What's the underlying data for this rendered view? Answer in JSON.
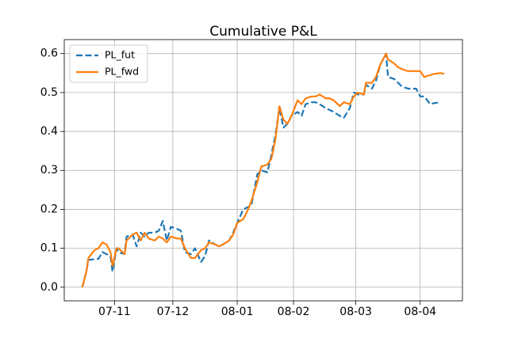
{
  "chart_data": {
    "type": "line",
    "title": "Cumulative P&L",
    "x": [
      14,
      16,
      17,
      20,
      22,
      24,
      26,
      28,
      29,
      31,
      32,
      35,
      36,
      39,
      41,
      43,
      45,
      47,
      50,
      52,
      54,
      56,
      58,
      61,
      63,
      65,
      68,
      70,
      73,
      75,
      77,
      80,
      82,
      84,
      87,
      89,
      91,
      94,
      96,
      98,
      101,
      103,
      106,
      108,
      110,
      112,
      114,
      116,
      118,
      121,
      123,
      125,
      128,
      130,
      132,
      135,
      137,
      139,
      142,
      144,
      147,
      149,
      151,
      154,
      155,
      158,
      160,
      162,
      165,
      166,
      169,
      171,
      173,
      176,
      178,
      180,
      182,
      184,
      187,
      189,
      192,
      194
    ],
    "series": [
      {
        "name": "PL_fut",
        "color": "#1f77b4",
        "dash": true,
        "values": [
          0,
          0.04,
          0.07,
          0.072,
          0.073,
          0.09,
          0.085,
          0.08,
          0.04,
          0.1,
          0.09,
          0.085,
          0.13,
          0.135,
          0.105,
          0.14,
          0.13,
          0.14,
          0.14,
          0.145,
          0.17,
          0.12,
          0.155,
          0.15,
          0.145,
          0.09,
          0.085,
          0.1,
          0.065,
          0.08,
          0.12,
          0.11,
          0.105,
          0.11,
          0.12,
          0.14,
          0.165,
          0.2,
          0.205,
          0.21,
          0.29,
          0.3,
          0.295,
          0.34,
          0.39,
          0.46,
          0.41,
          0.42,
          0.44,
          0.45,
          0.44,
          0.47,
          0.475,
          0.475,
          0.47,
          0.46,
          0.455,
          0.45,
          0.44,
          0.435,
          0.46,
          0.5,
          0.495,
          0.495,
          0.52,
          0.51,
          0.53,
          0.57,
          0.6,
          0.54,
          0.535,
          0.525,
          0.515,
          0.51,
          0.51,
          0.51,
          0.49,
          0.49,
          0.47,
          0.473,
          0.475,
          null
        ]
      },
      {
        "name": "PL_fwd",
        "color": "#ff7f0e",
        "dash": false,
        "values": [
          0,
          0.04,
          0.075,
          0.095,
          0.1,
          0.115,
          0.11,
          0.09,
          0.055,
          0.1,
          0.1,
          0.085,
          0.12,
          0.135,
          0.14,
          0.12,
          0.14,
          0.125,
          0.12,
          0.13,
          0.125,
          0.115,
          0.13,
          0.125,
          0.125,
          0.1,
          0.075,
          0.075,
          0.095,
          0.1,
          0.115,
          0.11,
          0.105,
          0.11,
          0.12,
          0.135,
          0.165,
          0.175,
          0.195,
          0.22,
          0.27,
          0.31,
          0.315,
          0.33,
          0.38,
          0.465,
          0.43,
          0.42,
          0.44,
          0.48,
          0.47,
          0.485,
          0.49,
          0.49,
          0.495,
          0.485,
          0.485,
          0.48,
          0.465,
          0.475,
          0.47,
          0.49,
          0.5,
          0.495,
          0.525,
          0.525,
          0.54,
          0.57,
          0.6,
          0.585,
          0.575,
          0.565,
          0.56,
          0.555,
          0.555,
          0.555,
          0.555,
          0.54,
          0.545,
          0.548,
          0.55,
          0.548
        ]
      }
    ],
    "xlim": [
      5,
      203
    ],
    "xticks": [
      {
        "value": 30,
        "label": "07-11"
      },
      {
        "value": 59,
        "label": "07-12"
      },
      {
        "value": 91,
        "label": "08-01"
      },
      {
        "value": 119,
        "label": "08-02"
      },
      {
        "value": 150,
        "label": "08-03"
      },
      {
        "value": 182,
        "label": "08-04"
      }
    ],
    "ylim": [
      -0.035,
      0.636
    ],
    "yticks": [
      {
        "value": 0,
        "label": "0.0"
      },
      0.1,
      0.2,
      0.3,
      0.4,
      0.5,
      0.6
    ],
    "grid": true,
    "legend": "upper left"
  }
}
